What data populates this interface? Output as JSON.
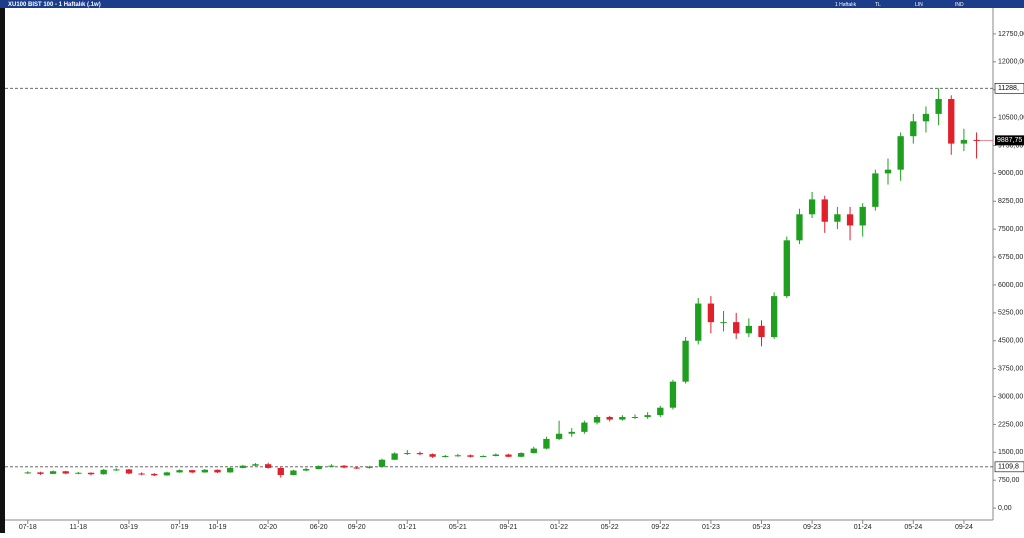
{
  "title": "XU100 BIST 100 - 1 Haftalık (.1w)",
  "toolbar": [
    "1 Haftalık",
    "TL",
    "LIN",
    "IND"
  ],
  "chart_data": {
    "type": "candlestick",
    "open": [
      950,
      960,
      920,
      990,
      930,
      950,
      910,
      1030,
      1040,
      930,
      920,
      880,
      960,
      1020,
      960,
      1030,
      960,
      1080,
      1140,
      1180,
      1080,
      890,
      1010,
      1050,
      1130,
      1140,
      1090,
      1080,
      1110,
      1300,
      1470,
      1480,
      1450,
      1380,
      1400,
      1420,
      1380,
      1400,
      1440,
      1380,
      1480,
      1600,
      1860,
      2000,
      2050,
      2300,
      2450,
      2380,
      2450,
      2450,
      2500,
      2700,
      3400,
      4500,
      5500,
      5000,
      5000,
      4700,
      4900,
      4600,
      5700,
      7200,
      7900,
      8300,
      7700,
      7900,
      7600,
      8100,
      9000,
      9100,
      10000,
      10400,
      10600,
      11000,
      9800,
      9900
    ],
    "high": [
      990,
      980,
      1010,
      1000,
      970,
      960,
      1050,
      1070,
      1050,
      960,
      940,
      980,
      1040,
      1030,
      1050,
      1040,
      1100,
      1160,
      1210,
      1220,
      1100,
      1030,
      1080,
      1150,
      1180,
      1160,
      1120,
      1140,
      1330,
      1500,
      1560,
      1520,
      1470,
      1430,
      1460,
      1440,
      1420,
      1470,
      1460,
      1500,
      1650,
      1920,
      2350,
      2150,
      2350,
      2500,
      2480,
      2500,
      2520,
      2580,
      2750,
      3450,
      4600,
      5650,
      5700,
      5300,
      5250,
      5100,
      5050,
      5800,
      7300,
      8050,
      8500,
      8400,
      8100,
      8100,
      8200,
      9100,
      9400,
      10100,
      10600,
      10800,
      11288,
      11100,
      10200,
      10100
    ],
    "low": [
      920,
      890,
      910,
      910,
      910,
      880,
      900,
      1000,
      910,
      880,
      860,
      870,
      950,
      940,
      950,
      940,
      950,
      1070,
      1130,
      1060,
      820,
      880,
      990,
      1040,
      1110,
      1070,
      1050,
      1060,
      1090,
      1290,
      1430,
      1420,
      1350,
      1360,
      1380,
      1360,
      1370,
      1390,
      1370,
      1370,
      1470,
      1580,
      1830,
      1920,
      2000,
      2250,
      2330,
      2350,
      2400,
      2400,
      2450,
      2650,
      3350,
      4400,
      4700,
      4750,
      4550,
      4600,
      4350,
      4550,
      5650,
      7100,
      7800,
      7400,
      7500,
      7200,
      7300,
      8000,
      8700,
      8800,
      9800,
      10100,
      10300,
      9500,
      9600,
      9400
    ],
    "close": [
      960,
      920,
      990,
      930,
      950,
      910,
      1030,
      1040,
      930,
      920,
      880,
      960,
      1020,
      960,
      1030,
      960,
      1080,
      1140,
      1180,
      1080,
      890,
      1010,
      1050,
      1130,
      1140,
      1090,
      1080,
      1110,
      1300,
      1470,
      1480,
      1450,
      1380,
      1400,
      1420,
      1380,
      1400,
      1440,
      1380,
      1480,
      1600,
      1860,
      2000,
      2050,
      2300,
      2450,
      2380,
      2450,
      2450,
      2500,
      2700,
      3400,
      4500,
      5500,
      5000,
      5000,
      4700,
      4900,
      4600,
      5700,
      7200,
      7900,
      8300,
      7700,
      7900,
      7600,
      8100,
      9000,
      9100,
      10000,
      10400,
      10600,
      11000,
      9800,
      9900,
      9887.75
    ],
    "up_color": "#1f9e1f",
    "down_color": "#e0202a",
    "xlim": [
      -1.8,
      76.3
    ],
    "xticks": [
      {
        "value": 0,
        "label": "07-18"
      },
      {
        "value": 4,
        "label": "11-18"
      },
      {
        "value": 8,
        "label": "03-19"
      },
      {
        "value": 12,
        "label": "07-19"
      },
      {
        "value": 15,
        "label": "10-19"
      },
      {
        "value": 19,
        "label": "02-20"
      },
      {
        "value": 23,
        "label": "06-20"
      },
      {
        "value": 26,
        "label": "09-20"
      },
      {
        "value": 30,
        "label": "01-21"
      },
      {
        "value": 34,
        "label": "05-21"
      },
      {
        "value": 38,
        "label": "09-21"
      },
      {
        "value": 42,
        "label": "01-22"
      },
      {
        "value": 46,
        "label": "05-22"
      },
      {
        "value": 50,
        "label": "09-22"
      },
      {
        "value": 54,
        "label": "01-23"
      },
      {
        "value": 58,
        "label": "05-23"
      },
      {
        "value": 62,
        "label": "09-23"
      },
      {
        "value": 66,
        "label": "01-24"
      },
      {
        "value": 70,
        "label": "05-24"
      },
      {
        "value": 74,
        "label": "09-24"
      }
    ],
    "ylim": [
      -320,
      13420
    ],
    "yticks": [
      {
        "value": 0,
        "label": "0,00"
      },
      {
        "value": 750,
        "label": "750,00"
      },
      {
        "value": 1500,
        "label": "1500,00"
      },
      {
        "value": 2250,
        "label": "2250,00"
      },
      {
        "value": 3000,
        "label": "3000,00"
      },
      {
        "value": 3750,
        "label": "3750,00"
      },
      {
        "value": 4500,
        "label": "4500,00"
      },
      {
        "value": 5250,
        "label": "5250,00"
      },
      {
        "value": 6000,
        "label": "6000,00"
      },
      {
        "value": 6750,
        "label": "6750,00"
      },
      {
        "value": 7500,
        "label": "7500,00"
      },
      {
        "value": 8250,
        "label": "8250,00"
      },
      {
        "value": 9000,
        "label": "9000,00"
      },
      {
        "value": 9750,
        "label": "9750,00"
      },
      {
        "value": 10500,
        "label": "10500,00"
      },
      {
        "value": 11250,
        "label": "11250,00"
      },
      {
        "value": 12000,
        "label": "12000,00"
      },
      {
        "value": 12750,
        "label": "12750,00"
      }
    ],
    "levels": [
      {
        "value": 11288,
        "label": "11288,"
      },
      {
        "value": 1109.8,
        "label": "1109,8"
      }
    ],
    "last_price": {
      "value": 9887.75,
      "label": "9887,75"
    }
  }
}
